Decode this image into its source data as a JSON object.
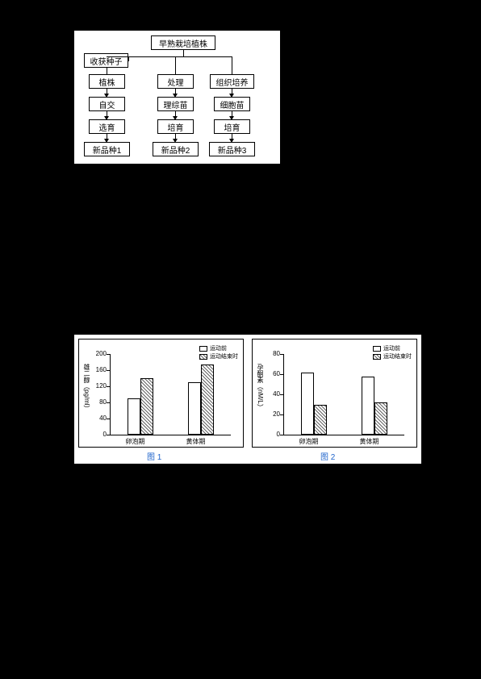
{
  "flowchart": {
    "root": "早熟栽培植株",
    "branch_left_top": "收获种子",
    "col1": [
      "植株",
      "自交",
      "选育",
      "新品种1"
    ],
    "col2": [
      "处理",
      "理综苗",
      "培育",
      "新品种2"
    ],
    "col3": [
      "组织培养",
      "细胞苗",
      "培育",
      "新品种3"
    ]
  },
  "chart1": {
    "type": "bar",
    "ylabel": "雄二醇（pg/ml）",
    "ylim": [
      0,
      200
    ],
    "yticks": [
      0,
      40,
      80,
      120,
      160,
      200
    ],
    "categories": [
      "卵泡期",
      "黄体期"
    ],
    "series": [
      {
        "name": "运动前",
        "fill": "#ffffff",
        "values": [
          90,
          130
        ]
      },
      {
        "name": "运动结束时",
        "fill": "hatch",
        "values": [
          140,
          175
        ]
      }
    ],
    "title": "图 1",
    "legend_pos": "top-right"
  },
  "chart2": {
    "type": "bar",
    "ylabel": "孕酮素（nM/L）",
    "ylim": [
      0,
      80
    ],
    "yticks": [
      0,
      20,
      40,
      60,
      80
    ],
    "categories": [
      "卵泡期",
      "黄体期"
    ],
    "series": [
      {
        "name": "运动前",
        "fill": "#ffffff",
        "values": [
          62,
          58
        ]
      },
      {
        "name": "运动结束时",
        "fill": "hatch",
        "values": [
          30,
          32
        ]
      }
    ],
    "title": "图 2",
    "legend_pos": "top-right"
  },
  "style": {
    "hatch_color": "#666666",
    "box_border": "#000000"
  }
}
